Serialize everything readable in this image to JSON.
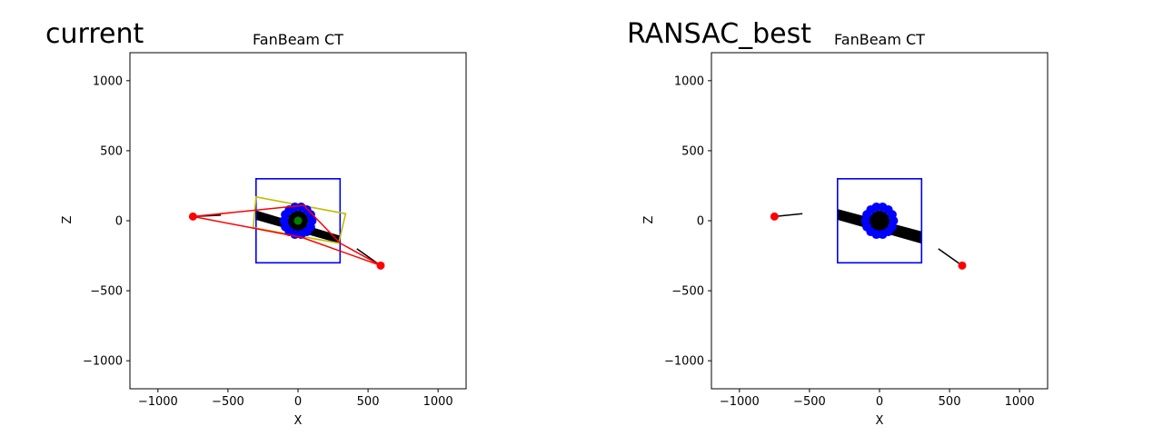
{
  "panels": [
    {
      "overlay_label": "current",
      "chart_data": {
        "type": "scatter",
        "title": "FanBeam CT",
        "xlabel": "X",
        "ylabel": "Z",
        "xlim": [
          -1200,
          1200
        ],
        "ylim": [
          -1200,
          1200
        ],
        "xticks": [
          -1000,
          -500,
          0,
          500,
          1000
        ],
        "yticks": [
          -1000,
          -500,
          0,
          500,
          1000
        ],
        "xtick_labels": [
          "−1000",
          "−500",
          "0",
          "500",
          "1000"
        ],
        "ytick_labels": [
          "−1000",
          "−500",
          "0",
          "500",
          "1000"
        ],
        "grid": false,
        "colors": {
          "box": "#0000ff",
          "dots": "#0000ff",
          "sources": "#ff0000",
          "beam": "#000000",
          "center": "#008000",
          "fit_box": "#bfbf00"
        },
        "volume_box": [
          [
            -300,
            -300
          ],
          [
            300,
            -300
          ],
          [
            300,
            300
          ],
          [
            -300,
            300
          ]
        ],
        "fit_box": [
          [
            -300,
            170
          ],
          [
            340,
            50
          ],
          [
            290,
            -160
          ],
          [
            -320,
            -50
          ]
        ],
        "object_circle": {
          "cx": 0,
          "cy": 0,
          "r": 100,
          "count": 14
        },
        "sources": [
          [
            -750,
            30
          ],
          [
            590,
            -320
          ]
        ],
        "red_lines": [
          [
            [
              -750,
              30
            ],
            [
              40,
              110
            ],
            [
              300,
              -160
            ],
            [
              590,
              -320
            ],
            [
              30,
              -120
            ],
            [
              -750,
              30
            ]
          ]
        ],
        "beam_polygon": [
          [
            -300,
            70
          ],
          [
            -300,
            10
          ],
          [
            300,
            -160
          ],
          [
            300,
            -110
          ]
        ],
        "beam_segments": [
          [
            [
              -750,
              30
            ],
            [
              -550,
              40
            ]
          ],
          [
            [
              420,
              -200
            ],
            [
              590,
              -320
            ]
          ]
        ],
        "center_point": [
          0,
          0
        ]
      }
    },
    {
      "overlay_label": "RANSAC_best",
      "chart_data": {
        "type": "scatter",
        "title": "FanBeam CT",
        "xlabel": "X",
        "ylabel": "Z",
        "xlim": [
          -1200,
          1200
        ],
        "ylim": [
          -1200,
          1200
        ],
        "xticks": [
          -1000,
          -500,
          0,
          500,
          1000
        ],
        "yticks": [
          -1000,
          -500,
          0,
          500,
          1000
        ],
        "xtick_labels": [
          "−1000",
          "−500",
          "0",
          "500",
          "1000"
        ],
        "ytick_labels": [
          "−1000",
          "−500",
          "0",
          "500",
          "1000"
        ],
        "grid": false,
        "colors": {
          "box": "#0000ff",
          "dots": "#0000ff",
          "sources": "#ff0000",
          "beam": "#000000"
        },
        "volume_box": [
          [
            -300,
            -300
          ],
          [
            300,
            -300
          ],
          [
            300,
            300
          ],
          [
            -300,
            300
          ]
        ],
        "object_circle": {
          "cx": 0,
          "cy": 0,
          "r": 100,
          "count": 14
        },
        "sources": [
          [
            -750,
            30
          ],
          [
            590,
            -320
          ]
        ],
        "beam_polygon": [
          [
            -300,
            80
          ],
          [
            -300,
            10
          ],
          [
            300,
            -160
          ],
          [
            300,
            -80
          ]
        ],
        "beam_segments": [
          [
            [
              -750,
              30
            ],
            [
              -550,
              50
            ]
          ],
          [
            [
              420,
              -200
            ],
            [
              590,
              -320
            ]
          ]
        ]
      }
    }
  ]
}
